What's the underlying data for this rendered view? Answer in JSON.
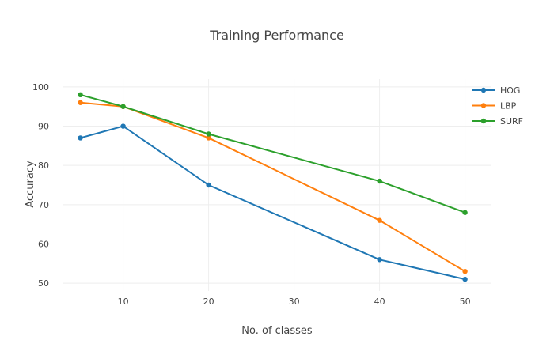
{
  "chart_data": {
    "type": "line",
    "title": "Training Performance",
    "xlabel": "No. of classes",
    "ylabel": "Accuracy",
    "x": [
      5,
      10,
      20,
      40,
      50
    ],
    "xlim": [
      3,
      53
    ],
    "ylim": [
      48,
      102
    ],
    "xticks": [
      10,
      20,
      30,
      40,
      50
    ],
    "yticks": [
      50,
      60,
      70,
      80,
      90,
      100
    ],
    "grid": true,
    "legend_position": "top-right",
    "series": [
      {
        "name": "HOG",
        "color": "#1f77b4",
        "values": [
          87,
          90,
          75,
          56,
          51
        ]
      },
      {
        "name": "LBP",
        "color": "#ff7f0e",
        "values": [
          96,
          95,
          87,
          66,
          53
        ]
      },
      {
        "name": "SURF",
        "color": "#2ca02c",
        "values": [
          98,
          95,
          88,
          76,
          68
        ]
      }
    ]
  }
}
